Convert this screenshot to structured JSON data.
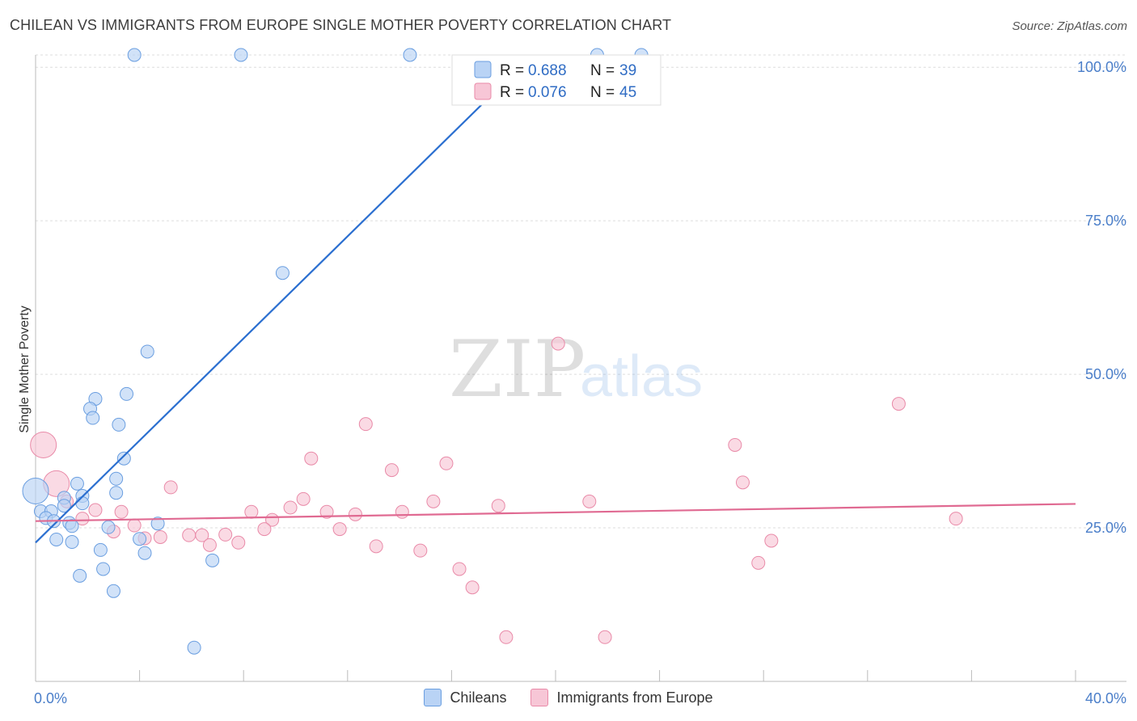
{
  "header": {
    "title": "CHILEAN VS IMMIGRANTS FROM EUROPE SINGLE MOTHER POVERTY CORRELATION CHART",
    "source": "Source: ZipAtlas.com"
  },
  "watermark": {
    "zip": "ZIP",
    "atlas": "atlas"
  },
  "colors": {
    "blue_fill": "#b9d3f5",
    "blue_stroke": "#6a9ee0",
    "blue_line": "#2b6fd0",
    "pink_fill": "#f7c6d6",
    "pink_stroke": "#e98aa8",
    "pink_line": "#e06a92",
    "grid": "#dddddd",
    "axis_label": "#4a7ec9"
  },
  "legend": {
    "rows": [
      {
        "r_label": "R = ",
        "r_value": "0.688",
        "n_label": "N = ",
        "n_value": "39"
      },
      {
        "r_label": "R = ",
        "r_value": "0.076",
        "n_label": "N = ",
        "n_value": "45"
      }
    ]
  },
  "bottom_legend": [
    "Chileans",
    "Immigrants from Europe"
  ],
  "chart_data": {
    "type": "scatter",
    "title": "CHILEAN VS IMMIGRANTS FROM EUROPE SINGLE MOTHER POVERTY CORRELATION CHART",
    "xlabel": "",
    "ylabel": "Single Mother Poverty",
    "xlim": [
      0,
      40
    ],
    "ylim": [
      0,
      102
    ],
    "x_tick_labels": [
      {
        "value": 0,
        "label": "0.0%"
      },
      {
        "value": 40,
        "label": "40.0%"
      }
    ],
    "x_tick_marks": [
      0,
      4,
      8,
      12,
      16,
      20,
      24,
      28,
      32,
      36,
      40
    ],
    "y_ticks": [
      {
        "value": 25,
        "label": "25.0%"
      },
      {
        "value": 50,
        "label": "50.0%"
      },
      {
        "value": 75,
        "label": "75.0%"
      },
      {
        "value": 100,
        "label": "100.0%"
      }
    ],
    "series": [
      {
        "name": "Chileans",
        "color": "blue",
        "trend": {
          "x0": 0,
          "y0": 22.6,
          "x1": 18.6,
          "y1": 99.9
        },
        "points": [
          {
            "x": 3.8,
            "y": 102
          },
          {
            "x": 7.9,
            "y": 102
          },
          {
            "x": 14.4,
            "y": 102
          },
          {
            "x": 21.6,
            "y": 102
          },
          {
            "x": 9.5,
            "y": 66.5
          },
          {
            "x": 4.3,
            "y": 53.7
          },
          {
            "x": 3.5,
            "y": 46.8
          },
          {
            "x": 2.3,
            "y": 46.0
          },
          {
            "x": 2.1,
            "y": 44.4
          },
          {
            "x": 2.2,
            "y": 42.9
          },
          {
            "x": 3.2,
            "y": 41.8
          },
          {
            "x": 3.4,
            "y": 36.3
          },
          {
            "x": 3.1,
            "y": 33.0
          },
          {
            "x": 1.6,
            "y": 32.2
          },
          {
            "x": 3.1,
            "y": 30.7
          },
          {
            "x": 1.8,
            "y": 30.2
          },
          {
            "x": 1.8,
            "y": 29.0
          },
          {
            "x": 1.1,
            "y": 29.9
          },
          {
            "x": 1.1,
            "y": 28.6
          },
          {
            "x": 0.0,
            "y": 31.0
          },
          {
            "x": 0.2,
            "y": 27.7
          },
          {
            "x": 0.6,
            "y": 27.7
          },
          {
            "x": 0.4,
            "y": 26.6
          },
          {
            "x": 0.7,
            "y": 26.1
          },
          {
            "x": 1.3,
            "y": 25.8
          },
          {
            "x": 1.4,
            "y": 25.3
          },
          {
            "x": 2.8,
            "y": 25.1
          },
          {
            "x": 4.7,
            "y": 25.7
          },
          {
            "x": 0.8,
            "y": 23.1
          },
          {
            "x": 1.4,
            "y": 22.7
          },
          {
            "x": 4.0,
            "y": 23.2
          },
          {
            "x": 2.5,
            "y": 21.4
          },
          {
            "x": 4.2,
            "y": 20.9
          },
          {
            "x": 6.8,
            "y": 19.7
          },
          {
            "x": 2.6,
            "y": 18.3
          },
          {
            "x": 1.7,
            "y": 17.2
          },
          {
            "x": 3.0,
            "y": 14.7
          },
          {
            "x": 6.1,
            "y": 5.5
          },
          {
            "x": 23.3,
            "y": 102
          }
        ]
      },
      {
        "name": "Immigrants from Europe",
        "color": "pink",
        "trend": {
          "x0": 0,
          "y0": 26.1,
          "x1": 40,
          "y1": 28.9
        },
        "points": [
          {
            "x": 20.1,
            "y": 55.0
          },
          {
            "x": 33.2,
            "y": 45.2
          },
          {
            "x": 12.7,
            "y": 41.9
          },
          {
            "x": 26.9,
            "y": 38.5
          },
          {
            "x": 0.3,
            "y": 38.5
          },
          {
            "x": 10.6,
            "y": 36.3
          },
          {
            "x": 15.8,
            "y": 35.5
          },
          {
            "x": 13.7,
            "y": 34.4
          },
          {
            "x": 27.2,
            "y": 32.4
          },
          {
            "x": 5.2,
            "y": 31.6
          },
          {
            "x": 0.8,
            "y": 32.2
          },
          {
            "x": 10.3,
            "y": 29.7
          },
          {
            "x": 15.3,
            "y": 29.3
          },
          {
            "x": 21.3,
            "y": 29.3
          },
          {
            "x": 17.8,
            "y": 28.6
          },
          {
            "x": 9.8,
            "y": 28.3
          },
          {
            "x": 11.2,
            "y": 27.6
          },
          {
            "x": 12.3,
            "y": 27.2
          },
          {
            "x": 14.1,
            "y": 27.6
          },
          {
            "x": 8.3,
            "y": 27.6
          },
          {
            "x": 3.3,
            "y": 27.6
          },
          {
            "x": 2.3,
            "y": 27.9
          },
          {
            "x": 1.2,
            "y": 29.3
          },
          {
            "x": 9.1,
            "y": 26.3
          },
          {
            "x": 35.4,
            "y": 26.5
          },
          {
            "x": 1.8,
            "y": 26.5
          },
          {
            "x": 3.8,
            "y": 25.4
          },
          {
            "x": 3.0,
            "y": 24.4
          },
          {
            "x": 8.8,
            "y": 24.8
          },
          {
            "x": 11.7,
            "y": 24.8
          },
          {
            "x": 4.8,
            "y": 23.5
          },
          {
            "x": 5.9,
            "y": 23.8
          },
          {
            "x": 6.4,
            "y": 23.8
          },
          {
            "x": 7.3,
            "y": 23.9
          },
          {
            "x": 4.2,
            "y": 23.3
          },
          {
            "x": 7.8,
            "y": 22.6
          },
          {
            "x": 28.3,
            "y": 22.9
          },
          {
            "x": 6.7,
            "y": 22.2
          },
          {
            "x": 13.1,
            "y": 22.0
          },
          {
            "x": 14.8,
            "y": 21.3
          },
          {
            "x": 27.8,
            "y": 19.3
          },
          {
            "x": 16.3,
            "y": 18.3
          },
          {
            "x": 16.8,
            "y": 15.3
          },
          {
            "x": 18.1,
            "y": 7.2
          },
          {
            "x": 21.9,
            "y": 7.2
          }
        ]
      }
    ]
  }
}
